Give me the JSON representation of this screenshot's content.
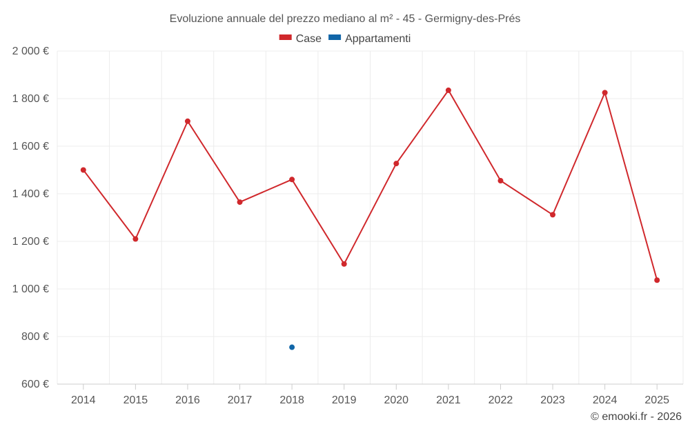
{
  "chart_data": {
    "type": "line",
    "title": "Evoluzione annuale del prezzo mediano al m² - 45 - Germigny-des-Prés",
    "xlabel": "",
    "ylabel": "",
    "categories": [
      "2014",
      "2015",
      "2016",
      "2017",
      "2018",
      "2019",
      "2020",
      "2021",
      "2022",
      "2023",
      "2024",
      "2025"
    ],
    "ylim": [
      600,
      2000
    ],
    "yticks": [
      600,
      800,
      1000,
      1200,
      1400,
      1600,
      1800,
      2000
    ],
    "ytick_labels": [
      "600 €",
      "800 €",
      "1 000 €",
      "1 200 €",
      "1 400 €",
      "1 600 €",
      "1 800 €",
      "2 000 €"
    ],
    "grid": true,
    "legend_position": "top-center",
    "series": [
      {
        "name": "Case",
        "color": "#d0282c",
        "values": [
          1500,
          1210,
          1705,
          1365,
          1460,
          1105,
          1527,
          1835,
          1455,
          1312,
          1825,
          1037
        ]
      },
      {
        "name": "Appartamenti",
        "color": "#1166a8",
        "values": [
          null,
          null,
          null,
          null,
          755,
          null,
          null,
          null,
          null,
          null,
          null,
          null
        ]
      }
    ],
    "credit": "© emooki.fr - 2026"
  }
}
